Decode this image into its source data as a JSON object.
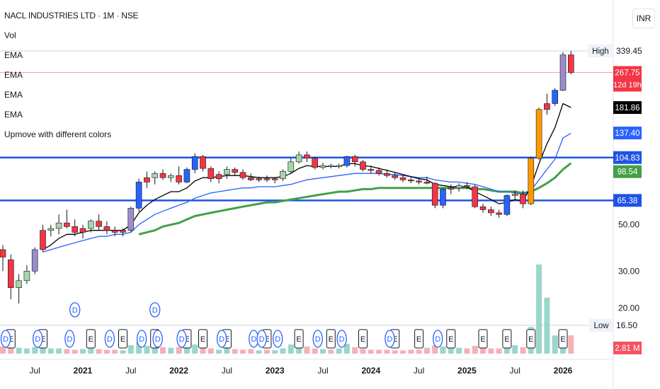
{
  "header": {
    "title": "NACL INDUSTRIES LTD · 1M · NSE",
    "currency": "INR",
    "indicators": [
      "Vol",
      "EMA",
      "EMA",
      "EMA",
      "EMA",
      "Upmove with different colors"
    ]
  },
  "price_labels": {
    "high_label": "High",
    "high_value": "339.45",
    "close_value": "267.75",
    "countdown": "12d 19h",
    "ema_fast": "181.86",
    "ema_mid": "137.40",
    "level_upper": "104.83",
    "ema_slow": "98.54",
    "level_lower": "65.38",
    "low_label": "Low",
    "low_value": "16.50",
    "volume_value": "2.81 M"
  },
  "colors": {
    "up": "#089981",
    "down": "#f23645",
    "red_candle": "#f23645",
    "green_candle": "#a5d6a7",
    "blue_candle": "#2962ff",
    "orange_candle": "#ff9800",
    "purple_candle": "#9c8cc8",
    "ema_fast": "#000000",
    "ema_mid": "#2962ff",
    "ema_slow": "#43a047",
    "level_line": "#1e53e5"
  },
  "chart_data": {
    "type": "candlestick",
    "scale": "log",
    "interval": "1M",
    "x_ticks": [
      "Jul",
      "2021",
      "Jul",
      "2022",
      "Jul",
      "2023",
      "Jul",
      "2024",
      "Jul",
      "2025",
      "Jul",
      "2026"
    ],
    "y_ticks": [
      "50.00",
      "30.00",
      "20.00"
    ],
    "horizontal_levels": [
      104.83,
      65.38
    ],
    "candles": [
      {
        "o": 38,
        "h": 40,
        "l": 30,
        "c": 35,
        "color": "red"
      },
      {
        "o": 34,
        "h": 36,
        "l": 22,
        "c": 25,
        "color": "red"
      },
      {
        "o": 25,
        "h": 29,
        "l": 21,
        "c": 27,
        "color": "green"
      },
      {
        "o": 27,
        "h": 32,
        "l": 26,
        "c": 30,
        "color": "green"
      },
      {
        "o": 30,
        "h": 39,
        "l": 29,
        "c": 38,
        "color": "purple"
      },
      {
        "o": 38,
        "h": 50,
        "l": 37,
        "c": 47,
        "color": "red"
      },
      {
        "o": 47,
        "h": 50,
        "l": 44,
        "c": 48,
        "color": "green"
      },
      {
        "o": 48,
        "h": 56,
        "l": 45,
        "c": 51,
        "color": "green"
      },
      {
        "o": 51,
        "h": 59,
        "l": 48,
        "c": 49,
        "color": "red"
      },
      {
        "o": 49,
        "h": 53,
        "l": 44,
        "c": 46,
        "color": "red"
      },
      {
        "o": 46,
        "h": 50,
        "l": 43,
        "c": 48,
        "color": "red"
      },
      {
        "o": 48,
        "h": 53,
        "l": 46,
        "c": 52,
        "color": "green"
      },
      {
        "o": 52,
        "h": 56,
        "l": 47,
        "c": 49,
        "color": "red"
      },
      {
        "o": 49,
        "h": 52,
        "l": 45,
        "c": 47,
        "color": "red"
      },
      {
        "o": 47,
        "h": 49,
        "l": 44,
        "c": 46,
        "color": "red"
      },
      {
        "o": 46,
        "h": 48,
        "l": 44,
        "c": 47,
        "color": "red"
      },
      {
        "o": 47,
        "h": 61,
        "l": 46,
        "c": 60,
        "color": "purple"
      },
      {
        "o": 60,
        "h": 83,
        "l": 58,
        "c": 80,
        "color": "blue"
      },
      {
        "o": 80,
        "h": 90,
        "l": 75,
        "c": 84,
        "color": "red"
      },
      {
        "o": 84,
        "h": 90,
        "l": 78,
        "c": 88,
        "color": "green"
      },
      {
        "o": 88,
        "h": 92,
        "l": 82,
        "c": 84,
        "color": "red"
      },
      {
        "o": 84,
        "h": 88,
        "l": 80,
        "c": 86,
        "color": "green"
      },
      {
        "o": 86,
        "h": 95,
        "l": 78,
        "c": 80,
        "color": "red"
      },
      {
        "o": 80,
        "h": 94,
        "l": 79,
        "c": 92,
        "color": "blue"
      },
      {
        "o": 92,
        "h": 110,
        "l": 88,
        "c": 106,
        "color": "blue"
      },
      {
        "o": 106,
        "h": 108,
        "l": 90,
        "c": 93,
        "color": "red"
      },
      {
        "o": 93,
        "h": 95,
        "l": 80,
        "c": 83,
        "color": "red"
      },
      {
        "o": 83,
        "h": 90,
        "l": 79,
        "c": 87,
        "color": "red"
      },
      {
        "o": 87,
        "h": 95,
        "l": 83,
        "c": 92,
        "color": "green"
      },
      {
        "o": 92,
        "h": 94,
        "l": 86,
        "c": 89,
        "color": "red"
      },
      {
        "o": 89,
        "h": 92,
        "l": 82,
        "c": 84,
        "color": "red"
      },
      {
        "o": 84,
        "h": 88,
        "l": 81,
        "c": 82,
        "color": "red"
      },
      {
        "o": 82,
        "h": 85,
        "l": 80,
        "c": 83,
        "color": "red"
      },
      {
        "o": 83,
        "h": 86,
        "l": 80,
        "c": 82,
        "color": "red"
      },
      {
        "o": 82,
        "h": 84,
        "l": 79,
        "c": 83,
        "color": "red"
      },
      {
        "o": 83,
        "h": 92,
        "l": 81,
        "c": 90,
        "color": "green"
      },
      {
        "o": 90,
        "h": 104,
        "l": 88,
        "c": 100,
        "color": "green"
      },
      {
        "o": 100,
        "h": 112,
        "l": 98,
        "c": 108,
        "color": "green"
      },
      {
        "o": 108,
        "h": 112,
        "l": 100,
        "c": 104,
        "color": "red"
      },
      {
        "o": 104,
        "h": 106,
        "l": 92,
        "c": 94,
        "color": "red"
      },
      {
        "o": 94,
        "h": 99,
        "l": 92,
        "c": 96,
        "color": "green"
      },
      {
        "o": 96,
        "h": 98,
        "l": 93,
        "c": 95,
        "color": "green"
      },
      {
        "o": 95,
        "h": 98,
        "l": 93,
        "c": 96,
        "color": "green"
      },
      {
        "o": 96,
        "h": 107,
        "l": 94,
        "c": 106,
        "color": "blue"
      },
      {
        "o": 106,
        "h": 108,
        "l": 95,
        "c": 100,
        "color": "red"
      },
      {
        "o": 100,
        "h": 102,
        "l": 90,
        "c": 92,
        "color": "red"
      },
      {
        "o": 92,
        "h": 96,
        "l": 88,
        "c": 91,
        "color": "red"
      },
      {
        "o": 91,
        "h": 94,
        "l": 86,
        "c": 88,
        "color": "red"
      },
      {
        "o": 88,
        "h": 92,
        "l": 84,
        "c": 86,
        "color": "red"
      },
      {
        "o": 86,
        "h": 89,
        "l": 82,
        "c": 84,
        "color": "red"
      },
      {
        "o": 84,
        "h": 87,
        "l": 80,
        "c": 82,
        "color": "red"
      },
      {
        "o": 82,
        "h": 85,
        "l": 79,
        "c": 81,
        "color": "red"
      },
      {
        "o": 81,
        "h": 84,
        "l": 78,
        "c": 80,
        "color": "red"
      },
      {
        "o": 80,
        "h": 85,
        "l": 78,
        "c": 79,
        "color": "red"
      },
      {
        "o": 79,
        "h": 80,
        "l": 60,
        "c": 62,
        "color": "red"
      },
      {
        "o": 62,
        "h": 75,
        "l": 60,
        "c": 74,
        "color": "blue"
      },
      {
        "o": 74,
        "h": 78,
        "l": 70,
        "c": 75,
        "color": "red"
      },
      {
        "o": 75,
        "h": 79,
        "l": 72,
        "c": 77,
        "color": "green"
      },
      {
        "o": 77,
        "h": 80,
        "l": 74,
        "c": 76,
        "color": "red"
      },
      {
        "o": 76,
        "h": 78,
        "l": 60,
        "c": 61,
        "color": "red"
      },
      {
        "o": 61,
        "h": 63,
        "l": 57,
        "c": 59,
        "color": "red"
      },
      {
        "o": 59,
        "h": 61,
        "l": 55,
        "c": 57,
        "color": "red"
      },
      {
        "o": 57,
        "h": 59,
        "l": 54,
        "c": 56,
        "color": "red"
      },
      {
        "o": 56,
        "h": 70,
        "l": 55,
        "c": 69,
        "color": "blue"
      },
      {
        "o": 69,
        "h": 73,
        "l": 66,
        "c": 70,
        "color": "orange"
      },
      {
        "o": 70,
        "h": 73,
        "l": 60,
        "c": 63,
        "color": "red"
      },
      {
        "o": 63,
        "h": 106,
        "l": 62,
        "c": 104,
        "color": "orange"
      },
      {
        "o": 104,
        "h": 182,
        "l": 102,
        "c": 178,
        "color": "orange"
      },
      {
        "o": 178,
        "h": 212,
        "l": 168,
        "c": 190,
        "color": "red"
      },
      {
        "o": 190,
        "h": 225,
        "l": 185,
        "c": 220,
        "color": "blue"
      },
      {
        "o": 220,
        "h": 335,
        "l": 218,
        "c": 325,
        "color": "purple"
      },
      {
        "o": 325,
        "h": 339.45,
        "l": 262,
        "c": 267.75,
        "color": "red"
      }
    ],
    "volume": [
      1.1,
      0.9,
      0.9,
      0.8,
      1.0,
      0.9,
      0.8,
      0.8,
      0.7,
      0.6,
      0.7,
      0.8,
      0.7,
      0.6,
      0.6,
      0.5,
      1.3,
      1.8,
      1.2,
      1.1,
      1.0,
      0.9,
      1.0,
      1.3,
      1.4,
      0.9,
      0.8,
      0.6,
      0.9,
      0.7,
      0.6,
      0.7,
      0.5,
      0.6,
      0.5,
      0.8,
      1.4,
      1.9,
      1.1,
      0.8,
      0.7,
      0.6,
      0.8,
      1.5,
      1.0,
      0.7,
      0.6,
      0.6,
      0.6,
      0.5,
      0.5,
      0.6,
      0.6,
      0.9,
      1.3,
      1.1,
      0.9,
      0.9,
      0.8,
      1.2,
      0.9,
      0.8,
      0.8,
      1.2,
      1.3,
      1.0,
      4.1,
      13.7,
      8.6,
      2.8,
      1.8,
      2.81
    ],
    "ema_fast": [
      null,
      null,
      null,
      null,
      null,
      38,
      40,
      43,
      45,
      45,
      46,
      47,
      47,
      47,
      47,
      47,
      50,
      57,
      62,
      66,
      69,
      72,
      72,
      75,
      81,
      84,
      84,
      85,
      86,
      86,
      86,
      85,
      84,
      84,
      84,
      85,
      88,
      93,
      96,
      95,
      95,
      95,
      95,
      98,
      98,
      96,
      95,
      93,
      91,
      89,
      87,
      85,
      83,
      82,
      78,
      77,
      76,
      76,
      76,
      72,
      69,
      66,
      63,
      64,
      66,
      65,
      76,
      98,
      122,
      146,
      190,
      182
    ],
    "ema_mid": [
      null,
      null,
      null,
      null,
      null,
      37,
      38,
      39,
      40,
      41,
      42,
      43,
      44,
      44,
      45,
      45,
      46,
      50,
      53,
      56,
      58,
      60,
      62,
      64,
      67,
      69,
      71,
      72,
      73,
      74,
      75,
      75,
      76,
      76,
      76,
      77,
      78,
      80,
      82,
      83,
      84,
      85,
      86,
      87,
      88,
      88,
      88,
      88,
      87,
      87,
      86,
      85,
      84,
      84,
      82,
      81,
      80,
      80,
      79,
      78,
      76,
      74,
      72,
      72,
      71,
      70,
      73,
      82,
      92,
      103,
      130,
      137
    ],
    "ema_slow": [
      null,
      null,
      null,
      null,
      null,
      null,
      null,
      null,
      null,
      null,
      null,
      null,
      null,
      null,
      null,
      null,
      null,
      45,
      46,
      47,
      49,
      50,
      51,
      53,
      55,
      56,
      57,
      58,
      59,
      60,
      61,
      62,
      63,
      64,
      64,
      65,
      66,
      67,
      68,
      69,
      70,
      71,
      72,
      72,
      73,
      74,
      74,
      75,
      75,
      75,
      75,
      75,
      75,
      75,
      75,
      75,
      75,
      75,
      75,
      74,
      74,
      73,
      72,
      72,
      72,
      71,
      72,
      75,
      79,
      84,
      92,
      98.54
    ],
    "event_markers": {
      "E": [
        1,
        5,
        11,
        15,
        19,
        23,
        25,
        28,
        33,
        37,
        41,
        45,
        49,
        52,
        56,
        60,
        63,
        66,
        70
      ],
      "D": [
        0,
        4,
        8,
        13,
        17,
        19,
        22,
        27,
        31,
        32,
        34,
        39,
        42,
        48,
        54
      ]
    },
    "dividend_bubbles": [
      9,
      19
    ]
  }
}
